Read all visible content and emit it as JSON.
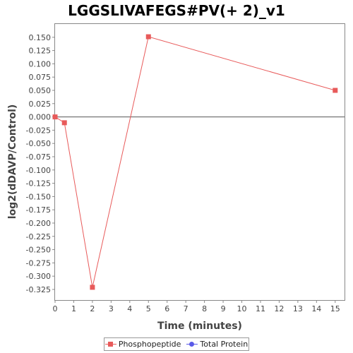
{
  "chart_data": {
    "type": "line",
    "title": "LGGSLIVAFEGS#PV(+ 2)_v1",
    "xlabel": "Time (minutes)",
    "ylabel": "log2(dDAVP/Control)",
    "xlim": [
      0,
      15.5
    ],
    "ylim": [
      -0.345,
      0.175
    ],
    "x_ticks": [
      0,
      1,
      2,
      3,
      4,
      5,
      6,
      7,
      8,
      9,
      10,
      11,
      12,
      13,
      14,
      15
    ],
    "y_ticks": [
      0.15,
      0.125,
      0.1,
      0.075,
      0.05,
      0.025,
      0.0,
      -0.025,
      -0.05,
      -0.075,
      -0.1,
      -0.125,
      -0.15,
      -0.175,
      -0.2,
      -0.225,
      -0.25,
      -0.275,
      -0.3,
      -0.325
    ],
    "y_tick_labels": [
      "0.150",
      "0.125",
      "0.100",
      "0.075",
      "0.050",
      "0.025",
      "0.000",
      "-0.025",
      "-0.050",
      "-0.075",
      "-0.100",
      "-0.125",
      "-0.150",
      "-0.175",
      "-0.200",
      "-0.225",
      "-0.250",
      "-0.275",
      "-0.300",
      "-0.325"
    ],
    "zero_line": true,
    "grid": false,
    "legend_position": "bottom-center",
    "series": [
      {
        "name": "Phosphopeptide",
        "color": "#e85a5a",
        "marker": "square",
        "x": [
          0,
          0.5,
          2,
          5,
          15
        ],
        "y": [
          0.0,
          -0.011,
          -0.321,
          0.151,
          0.05
        ]
      },
      {
        "name": "Total Protein",
        "color": "#5a5ae8",
        "marker": "circle",
        "x": [],
        "y": []
      }
    ]
  }
}
